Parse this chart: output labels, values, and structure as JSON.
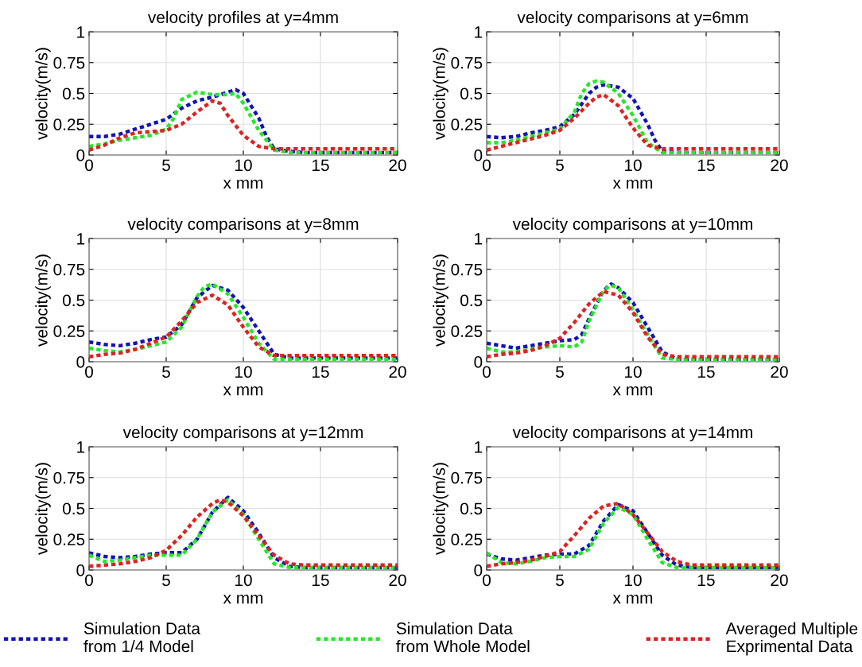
{
  "chart_data": [
    {
      "type": "line",
      "title": "velocity profiles at y=4mm",
      "xlabel": "x mm",
      "ylabel": "velocity(m/s)",
      "xlim": [
        0,
        20
      ],
      "ylim": [
        0,
        1
      ],
      "xticks": [
        0,
        5,
        10,
        15,
        20
      ],
      "yticks": [
        0,
        0.25,
        0.5,
        0.75,
        1
      ],
      "grid": true,
      "line_style": "dotted",
      "marker": "none",
      "series": [
        {
          "color": "#1414b4",
          "x": [
            0,
            1,
            2,
            3,
            4,
            5,
            6,
            7,
            8,
            9,
            9.5,
            10,
            11,
            11.5,
            12,
            13,
            14,
            15,
            16,
            17,
            18,
            19,
            20
          ],
          "values": [
            0.15,
            0.15,
            0.17,
            0.21,
            0.25,
            0.29,
            0.38,
            0.44,
            0.47,
            0.51,
            0.53,
            0.5,
            0.3,
            0.15,
            0.05,
            0.03,
            0.02,
            0.02,
            0.02,
            0.02,
            0.02,
            0.02,
            0.02
          ]
        },
        {
          "color": "#28e628",
          "x": [
            0,
            1,
            2,
            3,
            4,
            5,
            5.5,
            6,
            7,
            8,
            9,
            9.5,
            10,
            11,
            12,
            13,
            14,
            15,
            16,
            17,
            18,
            19,
            20
          ],
          "values": [
            0.07,
            0.09,
            0.12,
            0.14,
            0.16,
            0.21,
            0.3,
            0.45,
            0.51,
            0.49,
            0.49,
            0.5,
            0.42,
            0.2,
            0.04,
            0.02,
            0.02,
            0.02,
            0.02,
            0.02,
            0.02,
            0.02,
            0.02
          ]
        },
        {
          "color": "#dc2323",
          "x": [
            0,
            1,
            2,
            3,
            4,
            5,
            6,
            7,
            8,
            8.5,
            9,
            10,
            11,
            12,
            13,
            14,
            15,
            16,
            17,
            18,
            19,
            20
          ],
          "values": [
            0.04,
            0.08,
            0.14,
            0.18,
            0.19,
            0.2,
            0.25,
            0.35,
            0.44,
            0.42,
            0.32,
            0.16,
            0.07,
            0.05,
            0.05,
            0.05,
            0.05,
            0.05,
            0.05,
            0.05,
            0.05,
            0.05
          ]
        }
      ]
    },
    {
      "type": "line",
      "title": "velocity comparisons at y=6mm",
      "xlabel": "x mm",
      "ylabel": "velocity(m/s)",
      "xlim": [
        0,
        20
      ],
      "ylim": [
        0,
        1
      ],
      "xticks": [
        0,
        5,
        10,
        15,
        20
      ],
      "yticks": [
        0,
        0.25,
        0.5,
        0.75,
        1
      ],
      "grid": true,
      "line_style": "dotted",
      "marker": "none",
      "series": [
        {
          "color": "#1414b4",
          "x": [
            0,
            1,
            2,
            3,
            4,
            5,
            6,
            7,
            7.5,
            8,
            9,
            10,
            11,
            11.5,
            12,
            13,
            14,
            15,
            16,
            17,
            18,
            19,
            20
          ],
          "values": [
            0.15,
            0.14,
            0.15,
            0.18,
            0.2,
            0.23,
            0.33,
            0.5,
            0.55,
            0.57,
            0.55,
            0.46,
            0.25,
            0.12,
            0.03,
            0.02,
            0.02,
            0.02,
            0.02,
            0.02,
            0.02,
            0.02,
            0.02
          ]
        },
        {
          "color": "#28e628",
          "x": [
            0,
            1,
            2,
            3,
            4,
            5,
            6,
            6.5,
            7,
            7.5,
            8,
            9,
            10,
            11,
            12,
            13,
            14,
            15,
            16,
            17,
            18,
            19,
            20
          ],
          "values": [
            0.1,
            0.1,
            0.12,
            0.15,
            0.18,
            0.21,
            0.35,
            0.5,
            0.58,
            0.6,
            0.59,
            0.5,
            0.32,
            0.1,
            0.02,
            0.02,
            0.02,
            0.02,
            0.02,
            0.02,
            0.02,
            0.02,
            0.02
          ]
        },
        {
          "color": "#dc2323",
          "x": [
            0,
            1,
            2,
            3,
            4,
            5,
            6,
            7,
            7.5,
            8,
            9,
            10,
            11,
            12,
            13,
            14,
            15,
            16,
            17,
            18,
            19,
            20
          ],
          "values": [
            0.04,
            0.07,
            0.1,
            0.13,
            0.16,
            0.2,
            0.3,
            0.42,
            0.47,
            0.49,
            0.4,
            0.22,
            0.08,
            0.05,
            0.05,
            0.05,
            0.05,
            0.05,
            0.05,
            0.05,
            0.05,
            0.05
          ]
        }
      ]
    },
    {
      "type": "line",
      "title": "velocity comparisons at y=8mm",
      "xlabel": "x mm",
      "ylabel": "velocity(m/s)",
      "xlim": [
        0,
        20
      ],
      "ylim": [
        0,
        1
      ],
      "xticks": [
        0,
        5,
        10,
        15,
        20
      ],
      "yticks": [
        0,
        0.25,
        0.5,
        0.75,
        1
      ],
      "grid": true,
      "line_style": "dotted",
      "marker": "none",
      "series": [
        {
          "color": "#1414b4",
          "x": [
            0,
            1,
            2,
            3,
            4,
            5,
            6,
            7,
            8,
            9,
            10,
            11,
            12,
            13,
            14,
            15,
            16,
            17,
            18,
            19,
            20
          ],
          "values": [
            0.16,
            0.14,
            0.13,
            0.15,
            0.18,
            0.2,
            0.3,
            0.52,
            0.62,
            0.58,
            0.44,
            0.25,
            0.06,
            0.03,
            0.03,
            0.03,
            0.03,
            0.03,
            0.03,
            0.03,
            0.03
          ]
        },
        {
          "color": "#28e628",
          "x": [
            0,
            1,
            2,
            3,
            4,
            5,
            6,
            7,
            7.5,
            8,
            9,
            10,
            11,
            12,
            13,
            14,
            15,
            16,
            17,
            18,
            19,
            20
          ],
          "values": [
            0.11,
            0.09,
            0.08,
            0.1,
            0.13,
            0.16,
            0.28,
            0.53,
            0.61,
            0.63,
            0.55,
            0.36,
            0.15,
            0.02,
            0.02,
            0.02,
            0.02,
            0.02,
            0.02,
            0.02,
            0.02,
            0.02
          ]
        },
        {
          "color": "#dc2323",
          "x": [
            0,
            1,
            2,
            3,
            4,
            5,
            6,
            7,
            8,
            9,
            10,
            11,
            12,
            13,
            14,
            15,
            16,
            17,
            18,
            19,
            20
          ],
          "values": [
            0.04,
            0.06,
            0.07,
            0.1,
            0.15,
            0.2,
            0.33,
            0.48,
            0.54,
            0.46,
            0.28,
            0.12,
            0.05,
            0.05,
            0.05,
            0.05,
            0.05,
            0.05,
            0.05,
            0.05,
            0.05
          ]
        }
      ]
    },
    {
      "type": "line",
      "title": "velocity comparisons at y=10mm",
      "xlabel": "x mm",
      "ylabel": "velocity(m/s)",
      "xlim": [
        0,
        20
      ],
      "ylim": [
        0,
        1
      ],
      "xticks": [
        0,
        5,
        10,
        15,
        20
      ],
      "yticks": [
        0,
        0.25,
        0.5,
        0.75,
        1
      ],
      "grid": true,
      "line_style": "dotted",
      "marker": "none",
      "series": [
        {
          "color": "#1414b4",
          "x": [
            0,
            1,
            2,
            3,
            4,
            5,
            6,
            6.5,
            7,
            8,
            8.5,
            9,
            10,
            11,
            12,
            13,
            14,
            15,
            16,
            17,
            18,
            19,
            20
          ],
          "values": [
            0.15,
            0.13,
            0.11,
            0.13,
            0.15,
            0.17,
            0.18,
            0.22,
            0.35,
            0.58,
            0.63,
            0.6,
            0.48,
            0.28,
            0.08,
            0.02,
            0.02,
            0.02,
            0.02,
            0.02,
            0.02,
            0.02,
            0.02
          ]
        },
        {
          "color": "#28e628",
          "x": [
            0,
            1,
            2,
            3,
            4,
            5,
            6,
            6.5,
            7,
            8,
            8.5,
            9,
            10,
            11,
            12,
            13,
            14,
            15,
            16,
            17,
            18,
            19,
            20
          ],
          "values": [
            0.11,
            0.08,
            0.08,
            0.1,
            0.12,
            0.13,
            0.12,
            0.16,
            0.33,
            0.58,
            0.62,
            0.6,
            0.42,
            0.22,
            0.03,
            0.02,
            0.02,
            0.02,
            0.02,
            0.02,
            0.02,
            0.02,
            0.02
          ]
        },
        {
          "color": "#dc2323",
          "x": [
            0,
            1,
            2,
            3,
            4,
            5,
            6,
            7,
            8,
            9,
            10,
            11,
            12,
            13,
            14,
            15,
            16,
            17,
            18,
            19,
            20
          ],
          "values": [
            0.04,
            0.06,
            0.07,
            0.09,
            0.13,
            0.19,
            0.32,
            0.47,
            0.57,
            0.54,
            0.4,
            0.2,
            0.06,
            0.04,
            0.04,
            0.04,
            0.04,
            0.04,
            0.04,
            0.04,
            0.04
          ]
        }
      ]
    },
    {
      "type": "line",
      "title": "velocity comparisons at y=12mm",
      "xlabel": "x mm",
      "ylabel": "velocity(m/s)",
      "xlim": [
        0,
        20
      ],
      "ylim": [
        0,
        1
      ],
      "xticks": [
        0,
        5,
        10,
        15,
        20
      ],
      "yticks": [
        0,
        0.25,
        0.5,
        0.75,
        1
      ],
      "grid": true,
      "line_style": "dotted",
      "marker": "none",
      "series": [
        {
          "color": "#1414b4",
          "x": [
            0,
            1,
            2,
            3,
            4,
            5,
            6,
            7,
            8,
            9,
            10,
            11,
            12,
            13,
            14,
            15,
            16,
            17,
            18,
            19,
            20
          ],
          "values": [
            0.14,
            0.11,
            0.1,
            0.11,
            0.13,
            0.14,
            0.14,
            0.25,
            0.47,
            0.59,
            0.48,
            0.3,
            0.1,
            0.03,
            0.02,
            0.02,
            0.02,
            0.02,
            0.02,
            0.02,
            0.02
          ]
        },
        {
          "color": "#28e628",
          "x": [
            0,
            1,
            2,
            3,
            4,
            5,
            6,
            7,
            8,
            9,
            10,
            11,
            12,
            13,
            14,
            15,
            16,
            17,
            18,
            19,
            20
          ],
          "values": [
            0.12,
            0.07,
            0.08,
            0.1,
            0.12,
            0.12,
            0.12,
            0.25,
            0.47,
            0.57,
            0.45,
            0.25,
            0.05,
            0.02,
            0.02,
            0.02,
            0.02,
            0.02,
            0.02,
            0.02,
            0.02
          ]
        },
        {
          "color": "#dc2323",
          "x": [
            0,
            1,
            2,
            3,
            4,
            5,
            6,
            7,
            8,
            8.5,
            9,
            10,
            11,
            12,
            13,
            14,
            15,
            16,
            17,
            18,
            19,
            20
          ],
          "values": [
            0.03,
            0.04,
            0.05,
            0.07,
            0.1,
            0.16,
            0.28,
            0.43,
            0.54,
            0.57,
            0.55,
            0.44,
            0.28,
            0.12,
            0.05,
            0.04,
            0.04,
            0.04,
            0.04,
            0.04,
            0.04,
            0.04
          ]
        }
      ]
    },
    {
      "type": "line",
      "title": "velocity comparisons at y=14mm",
      "xlabel": "x mm",
      "ylabel": "velocity(m/s)",
      "xlim": [
        0,
        20
      ],
      "ylim": [
        0,
        1
      ],
      "xticks": [
        0,
        5,
        10,
        15,
        20
      ],
      "yticks": [
        0,
        0.25,
        0.5,
        0.75,
        1
      ],
      "grid": true,
      "line_style": "dotted",
      "marker": "none",
      "legend": "bottom",
      "series": [
        {
          "name": "Simulation Data\nfrom 1/4 Model",
          "color": "#1414b4",
          "x": [
            0,
            1,
            2,
            3,
            4,
            5,
            6,
            7,
            8,
            9,
            10,
            11,
            12,
            13,
            14,
            15,
            16,
            17,
            18,
            19,
            20
          ],
          "values": [
            0.13,
            0.09,
            0.08,
            0.1,
            0.12,
            0.13,
            0.13,
            0.2,
            0.4,
            0.53,
            0.48,
            0.3,
            0.12,
            0.04,
            0.02,
            0.02,
            0.02,
            0.02,
            0.02,
            0.02,
            0.02
          ]
        },
        {
          "name": "Simulation Data\nfrom Whole Model",
          "color": "#28e628",
          "x": [
            0,
            1,
            2,
            3,
            4,
            5,
            6,
            7,
            8,
            9,
            10,
            11,
            12,
            13,
            14,
            15,
            16,
            17,
            18,
            19,
            20
          ],
          "values": [
            0.14,
            0.06,
            0.05,
            0.07,
            0.1,
            0.11,
            0.11,
            0.17,
            0.38,
            0.51,
            0.45,
            0.25,
            0.06,
            0.02,
            0.02,
            0.02,
            0.02,
            0.02,
            0.02,
            0.02,
            0.02
          ]
        },
        {
          "name": "Averaged Multiple\nExprimental Data",
          "color": "#dc2323",
          "x": [
            0,
            1,
            2,
            3,
            4,
            5,
            6,
            7,
            8,
            9,
            10,
            11,
            12,
            13,
            14,
            15,
            16,
            17,
            18,
            19,
            20
          ],
          "values": [
            0.03,
            0.05,
            0.06,
            0.08,
            0.11,
            0.15,
            0.28,
            0.42,
            0.52,
            0.54,
            0.45,
            0.3,
            0.15,
            0.07,
            0.04,
            0.04,
            0.04,
            0.04,
            0.04,
            0.04,
            0.04
          ]
        }
      ]
    }
  ]
}
